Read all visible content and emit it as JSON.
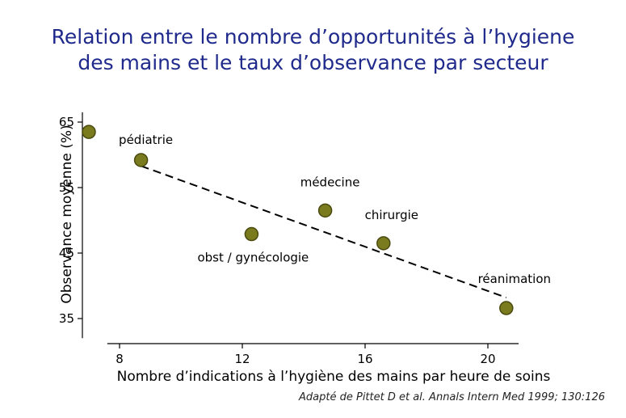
{
  "title_lines": [
    "Relation entre le nombre d’opportunités à l’hygiene",
    "des mains et le taux d’observance par secteur"
  ],
  "source": "Adapté de Pittet D et al. Annals Intern Med  1999; 130:126",
  "colors": {
    "title": "#1f2a8c",
    "point_fill": "#7a7a1e",
    "point_stroke": "#4a4a10",
    "axis": "#000000",
    "trend": "#000000"
  },
  "chart_data": {
    "type": "scatter",
    "title": "",
    "xlabel": "Nombre d’indications à l’hygiène des mains par heure de soins",
    "ylabel": "Observance moyenne  (%)",
    "xlim": [
      7.6,
      21
    ],
    "ylim": [
      32,
      66.5
    ],
    "xticks": [
      8,
      12,
      16,
      20
    ],
    "yticks": [
      35,
      45,
      55,
      65
    ],
    "grid": false,
    "points": [
      {
        "x": 7.0,
        "y": 63.5,
        "label": ""
      },
      {
        "x": 8.7,
        "y": 59.2,
        "label": "pédiatrie"
      },
      {
        "x": 12.3,
        "y": 47.9,
        "label": "obst / gynécologie"
      },
      {
        "x": 14.7,
        "y": 51.5,
        "label": "médecine"
      },
      {
        "x": 16.6,
        "y": 46.5,
        "label": "chirurgie"
      },
      {
        "x": 20.6,
        "y": 36.6,
        "label": "réanimation"
      }
    ],
    "trendline": {
      "x": [
        8.7,
        20.6
      ],
      "y": [
        58.3,
        38.2
      ],
      "style": "dashed"
    }
  }
}
